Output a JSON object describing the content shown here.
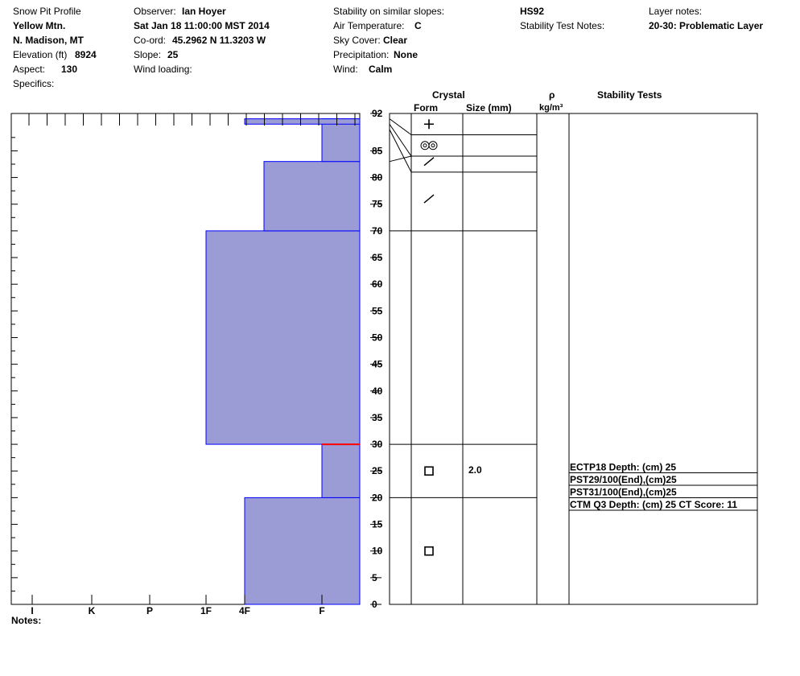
{
  "header": {
    "col1": {
      "title": "Snow Pit Profile",
      "location": "Yellow Mtn.",
      "region": "N. Madison, MT",
      "elevation_label": "Elevation (ft)",
      "elevation_value": "8924",
      "aspect_label": "Aspect:",
      "aspect_value": "130",
      "specifics_label": "Specifics:"
    },
    "col2": {
      "observer_label": "Observer:",
      "observer_value": "Ian Hoyer",
      "datetime": "Sat Jan 18 11:00:00 MST 2014",
      "coord_label": "Co-ord:",
      "coord_value": "45.2962 N 11.3203 W",
      "slope_label": "Slope:",
      "slope_value": "25",
      "wind_loading_label": "Wind loading:"
    },
    "col3": {
      "stability_label": "Stability on similar slopes:",
      "air_temp_label": "Air Temperature:",
      "air_temp_value": "C",
      "sky_label": "Sky Cover:",
      "sky_value": "Clear",
      "precip_label": "Precipitation:",
      "precip_value": "None",
      "wind_label": "Wind:",
      "wind_value": "Calm"
    },
    "col4": {
      "hs": "HS92",
      "stability_notes_label": "Stability Test Notes:"
    },
    "col5": {
      "layer_notes_label": "Layer notes:",
      "layer_notes_value": "20-30: Problematic Layer"
    }
  },
  "table_headers": {
    "crystal": "Crystal",
    "form": "Form",
    "size": "Size (mm)",
    "rho": "ρ",
    "density_unit": "kg/m³",
    "stability_tests": "Stability Tests"
  },
  "notes_label": "Notes:",
  "chart_data": {
    "type": "bar",
    "orientation": "horizontal-step",
    "ylabel": "",
    "ylim": [
      0,
      92
    ],
    "y_ticks": [
      "0",
      "5",
      "10",
      "15",
      "20",
      "25",
      "30",
      "35",
      "40",
      "45",
      "50",
      "55",
      "60",
      "65",
      "70",
      "75",
      "80",
      "85",
      "92"
    ],
    "hardness_scale": [
      "I",
      "K",
      "P",
      "1F",
      "4F",
      "F"
    ],
    "hardness_layers": [
      {
        "bottom": 0,
        "top": 20,
        "hardness": "4F"
      },
      {
        "bottom": 20,
        "top": 30,
        "hardness": "F"
      },
      {
        "bottom": 30,
        "top": 70,
        "hardness": "1F"
      },
      {
        "bottom": 70,
        "top": 83,
        "hardness": "4F+"
      },
      {
        "bottom": 83,
        "top": 91,
        "hardness": "F"
      },
      {
        "bottom": 90,
        "top": 91,
        "hardness": "4F"
      }
    ],
    "problem_interface_depth": 30,
    "layer_boundaries": [
      20,
      30,
      70,
      81,
      84,
      88
    ],
    "crystal_forms": [
      {
        "height": 90,
        "form": "plus"
      },
      {
        "height": 86,
        "form": "rounded-pair"
      },
      {
        "height": 83,
        "form": "slash"
      },
      {
        "height": 76,
        "form": "slash"
      },
      {
        "height": 25,
        "form": "square"
      },
      {
        "height": 10,
        "form": "square"
      }
    ],
    "crystal_sizes": [
      {
        "height": 25,
        "size": "2.0"
      }
    ],
    "stability_tests": [
      {
        "text": "ECTP18   Depth: (cm) 25"
      },
      {
        "text": "PST29/100(End),(cm)25"
      },
      {
        "text": "PST31/100(End),(cm)25"
      },
      {
        "text": "CTM Q3 Depth: (cm) 25 CT Score: 11"
      }
    ],
    "colors": {
      "fill": "#9b9bd6",
      "edge": "#0000ff",
      "problem": "#ff0000"
    }
  }
}
